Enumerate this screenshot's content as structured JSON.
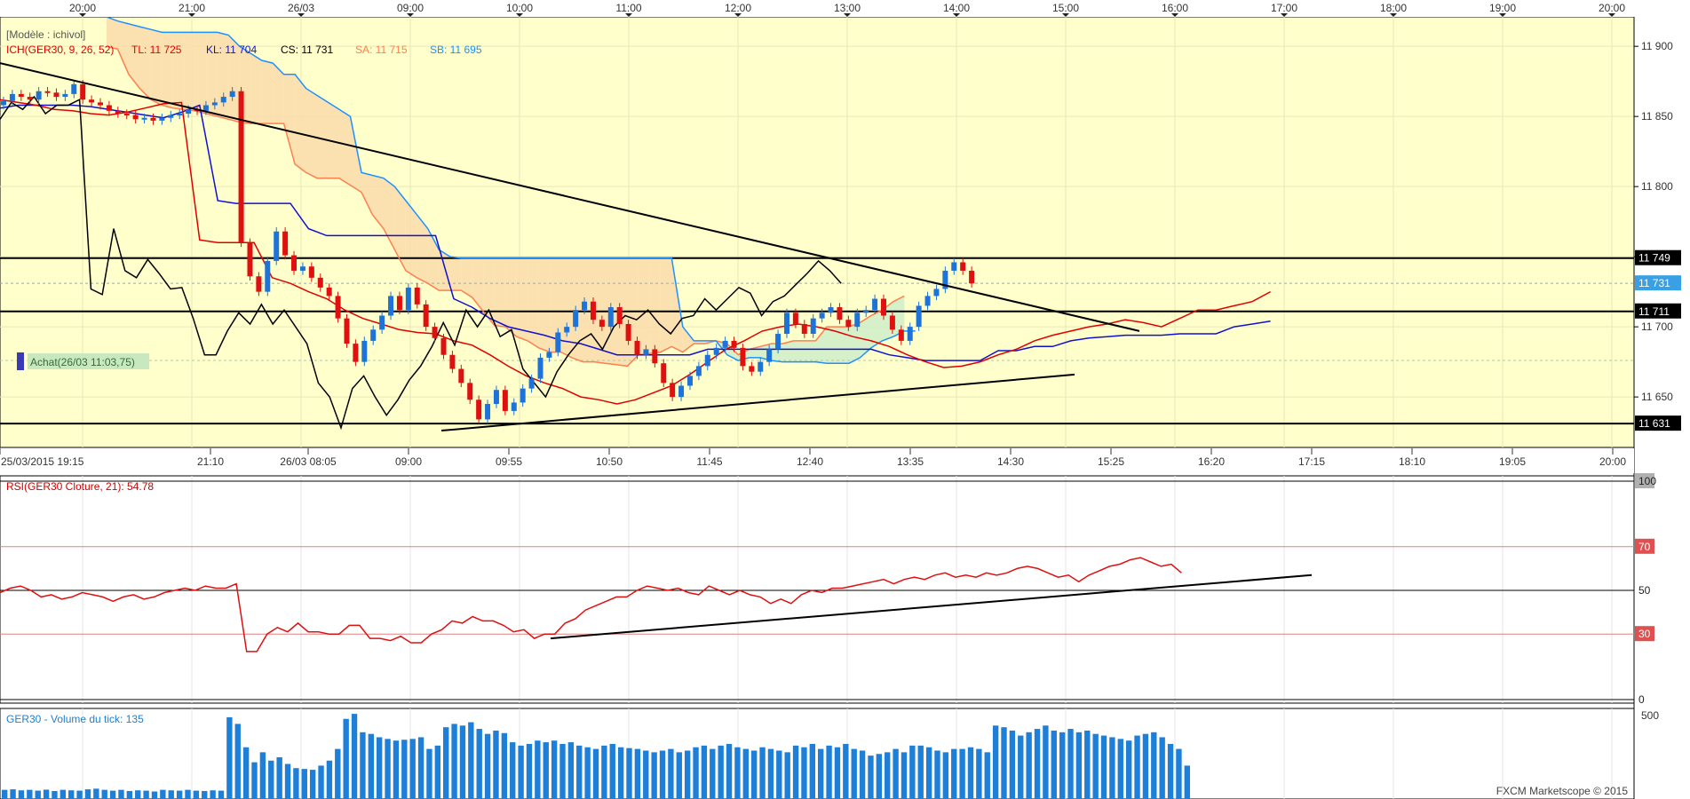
{
  "chart_data": [
    {
      "type": "candlestick",
      "title": "[Modèle : ichivol]",
      "ichimoku_label": "ICH(GER30, 9, 26, 52)",
      "legend": [
        {
          "label": "TL: 11 725",
          "color": "#e00000"
        },
        {
          "label": "KL: 11 704",
          "color": "#1010d0"
        },
        {
          "label": "CS: 11 731",
          "color": "#000000"
        },
        {
          "label": "SA: 11 715",
          "color": "#ff7f50"
        },
        {
          "label": "SB: 11 695",
          "color": "#1e90ff"
        }
      ],
      "top_axis_times": [
        "20:00",
        "21:00",
        "26/03",
        "09:00",
        "10:00",
        "11:00",
        "12:00",
        "13:00",
        "14:00",
        "15:00",
        "16:00",
        "17:00",
        "18:00",
        "19:00",
        "20:00"
      ],
      "bottom_axis_times": [
        "25/03/2015 19:15",
        "21:10",
        "26/03 08:05",
        "09:00",
        "09:55",
        "10:50",
        "11:45",
        "12:40",
        "13:35",
        "14:30",
        "15:25",
        "16:20",
        "17:15",
        "18:10",
        "19:05",
        "20:00"
      ],
      "y_ticks": [
        "11 900",
        "11 850",
        "11 800",
        "11 750",
        "11 700",
        "11 650"
      ],
      "ylim": [
        11614,
        11921
      ],
      "price_tags": [
        {
          "value": 11749,
          "label": "11 749",
          "style": "black"
        },
        {
          "value": 11731,
          "label": "11 731",
          "style": "blue"
        },
        {
          "value": 11711,
          "label": "11 711",
          "style": "black"
        },
        {
          "value": 11631,
          "label": "11 631",
          "style": "black"
        }
      ],
      "horizontal_levels": [
        11749,
        11711,
        11631
      ],
      "annotation": "Achat(26/03 11:03,75)",
      "annotation_value": 11676,
      "candles_close": [
        11861,
        11866,
        11864,
        11862,
        11868,
        11867,
        11864,
        11866,
        11873,
        11862,
        11860,
        11858,
        11854,
        11852,
        11851,
        11848,
        11849,
        11847,
        11849,
        11851,
        11852,
        11855,
        11854,
        11858,
        11860,
        11864,
        11868,
        11760,
        11736,
        11725,
        11747,
        11768,
        11751,
        11740,
        11743,
        11735,
        11728,
        11722,
        11706,
        11688,
        11675,
        11690,
        11698,
        11708,
        11722,
        11712,
        11728,
        11716,
        11700,
        11692,
        11680,
        11670,
        11660,
        11648,
        11634,
        11645,
        11655,
        11640,
        11646,
        11656,
        11663,
        11678,
        11682,
        11696,
        11700,
        11712,
        11718,
        11705,
        11700,
        11714,
        11702,
        11690,
        11680,
        11684,
        11674,
        11660,
        11650,
        11658,
        11665,
        11672,
        11680,
        11685,
        11690,
        11685,
        11672,
        11668,
        11675,
        11684,
        11695,
        11710,
        11702,
        11695,
        11706,
        11710,
        11714,
        11705,
        11700,
        11710,
        11712,
        11720,
        11708,
        11698,
        11690,
        11700,
        11715,
        11722,
        11727,
        11740,
        11746,
        11740,
        11731
      ],
      "chikou_span": [
        11848,
        11860,
        11855,
        11864,
        11852,
        11858,
        11858,
        11862,
        11727,
        11723,
        11770,
        11740,
        11735,
        11748,
        11738,
        11727,
        11728,
        11706,
        11680,
        11680,
        11697,
        11710,
        11702,
        11716,
        11702,
        11712,
        11700,
        11688,
        11660,
        11650,
        11628,
        11656,
        11665,
        11650,
        11637,
        11648,
        11662,
        11672,
        11686,
        11703,
        11687,
        11712,
        11700,
        11712,
        11693,
        11698,
        11670,
        11660,
        11650,
        11668,
        11680,
        11690,
        11695,
        11684,
        11700,
        11708,
        11705,
        11712,
        11702,
        11695,
        11706,
        11708,
        11720,
        11712,
        11720,
        11728,
        11724,
        11708,
        11718,
        11722,
        11730,
        11738,
        11747,
        11740,
        11731
      ],
      "tenkan_sen": [
        11862,
        11860,
        11858,
        11855,
        11854,
        11852,
        11851,
        11853,
        11856,
        11859,
        11860,
        11762,
        11760,
        11760,
        11760,
        11735,
        11731,
        11725,
        11720,
        11712,
        11706,
        11702,
        11698,
        11696,
        11695,
        11690,
        11687,
        11680,
        11672,
        11665,
        11660,
        11656,
        11650,
        11648,
        11645,
        11648,
        11653,
        11658,
        11666,
        11675,
        11684,
        11690,
        11697,
        11700,
        11702,
        11700,
        11697,
        11693,
        11690,
        11686,
        11680,
        11675,
        11671,
        11672,
        11675,
        11680,
        11684,
        11690,
        11694,
        11697,
        11700,
        11702,
        11705,
        11703,
        11700,
        11706,
        11712,
        11712,
        11715,
        11718,
        11725
      ],
      "kijun_sen": [
        11856,
        11858,
        11858,
        11858,
        11858,
        11857,
        11855,
        11853,
        11851,
        11849,
        11853,
        11858,
        11790,
        11788,
        11788,
        11788,
        11788,
        11770,
        11765,
        11765,
        11765,
        11765,
        11765,
        11765,
        11765,
        11720,
        11714,
        11706,
        11700,
        11697,
        11694,
        11690,
        11688,
        11684,
        11680,
        11680,
        11680,
        11680,
        11680,
        11684,
        11684,
        11684,
        11684,
        11684,
        11684,
        11684,
        11684,
        11684,
        11684,
        11680,
        11678,
        11676,
        11676,
        11676,
        11676,
        11683,
        11683,
        11686,
        11686,
        11690,
        11692,
        11693,
        11694,
        11694,
        11694,
        11695,
        11695,
        11695,
        11700,
        11702,
        11704
      ],
      "senkou_a": [
        11900,
        11898,
        11880,
        11870,
        11862,
        11858,
        11856,
        11855,
        11854,
        11852,
        11850,
        11848,
        11846,
        11845,
        11845,
        11845,
        11845,
        11816,
        11810,
        11806,
        11806,
        11806,
        11801,
        11796,
        11780,
        11770,
        11755,
        11740,
        11735,
        11731,
        11726,
        11726,
        11726,
        11721,
        11711,
        11701,
        11700,
        11693,
        11690,
        11685,
        11682,
        11682,
        11678,
        11675,
        11675,
        11674,
        11673,
        11672,
        11680,
        11681,
        11682,
        11686,
        11682,
        11688,
        11688,
        11690,
        11688,
        11680,
        11684,
        11686,
        11688,
        11688,
        11690,
        11690,
        11690,
        11700,
        11700,
        11700,
        11703,
        11708,
        11712,
        11718,
        11722
      ],
      "senkou_b": [
        11921,
        11918,
        11916,
        11914,
        11912,
        11910,
        11910,
        11910,
        11910,
        11910,
        11910,
        11908,
        11900,
        11895,
        11890,
        11888,
        11880,
        11880,
        11870,
        11865,
        11860,
        11855,
        11850,
        11810,
        11808,
        11806,
        11800,
        11790,
        11780,
        11770,
        11755,
        11750,
        11749,
        11749,
        11749,
        11749,
        11749,
        11749,
        11749,
        11749,
        11749,
        11749,
        11749,
        11749,
        11749,
        11749,
        11749,
        11749,
        11749,
        11749,
        11749,
        11749,
        11700,
        11690,
        11690,
        11690,
        11680,
        11676,
        11678,
        11678,
        11676,
        11675,
        11675,
        11675,
        11675,
        11674,
        11674,
        11674,
        11678,
        11685,
        11690,
        11693,
        11697,
        11697
      ],
      "trendlines": [
        {
          "from": [
            0,
            11888
          ],
          "to": [
            1283,
            11697
          ]
        },
        {
          "from": [
            497,
            11626
          ],
          "to": [
            1210,
            11666
          ]
        }
      ]
    },
    {
      "type": "line",
      "title": "RSI(GER30 Cloture, 21): 54.78",
      "ylim": [
        0,
        100
      ],
      "y_ticks": [
        0,
        30,
        50,
        70,
        100
      ],
      "levels": [
        30,
        50,
        70
      ],
      "values": [
        49,
        51,
        52,
        50,
        47,
        48,
        46,
        47,
        49,
        48,
        47,
        45,
        47,
        48,
        46,
        47,
        49,
        50,
        51,
        50,
        52,
        51,
        51,
        53,
        22,
        22,
        30,
        33,
        31,
        35,
        31,
        31,
        30,
        30,
        34,
        34,
        28,
        28,
        27,
        29,
        26,
        26,
        30,
        32,
        36,
        35,
        38,
        36,
        36,
        34,
        31,
        32,
        28,
        30,
        30,
        35,
        37,
        41,
        43,
        45,
        47,
        47,
        50,
        52,
        51,
        50,
        51,
        49,
        48,
        52,
        50,
        48,
        50,
        48,
        47,
        44,
        46,
        44,
        48,
        50,
        49,
        51,
        51,
        52,
        53,
        54,
        55,
        53,
        55,
        56,
        55,
        57,
        58,
        56,
        57,
        56,
        58,
        57,
        58,
        60,
        61,
        60,
        58,
        56,
        57,
        54,
        57,
        59,
        61,
        62,
        64,
        65,
        63,
        61,
        62,
        58
      ],
      "trendline": {
        "from": [
          0,
          28
        ],
        "to": [
          1,
          57
        ]
      }
    },
    {
      "type": "bar",
      "title": "GER30 - Volume du tick: 135",
      "ylim": [
        0,
        500
      ],
      "y_ticks": [
        500
      ],
      "values": [
        55,
        58,
        52,
        55,
        50,
        56,
        48,
        55,
        52,
        50,
        58,
        62,
        55,
        50,
        55,
        48,
        52,
        50,
        45,
        55,
        52,
        50,
        55,
        50,
        48,
        52,
        50,
        490,
        450,
        310,
        220,
        280,
        230,
        250,
        210,
        185,
        180,
        175,
        200,
        230,
        300,
        480,
        510,
        400,
        390,
        370,
        360,
        350,
        355,
        360,
        370,
        300,
        320,
        430,
        450,
        440,
        460,
        420,
        390,
        410,
        395,
        340,
        320,
        330,
        350,
        340,
        350,
        330,
        340,
        320,
        310,
        300,
        320,
        330,
        310,
        305,
        300,
        290,
        280,
        290,
        300,
        280,
        290,
        310,
        320,
        300,
        320,
        330,
        310,
        300,
        290,
        310,
        300,
        290,
        280,
        320,
        310,
        330,
        300,
        320,
        310,
        330,
        300,
        290,
        260,
        270,
        280,
        300,
        280,
        320,
        320,
        310,
        290,
        280,
        300,
        300,
        310,
        300,
        280,
        440,
        430,
        410,
        380,
        400,
        420,
        440,
        410,
        400,
        420,
        400,
        410,
        390,
        380,
        370,
        360,
        350,
        380,
        390,
        400,
        370,
        330,
        300,
        200
      ]
    }
  ],
  "footer": {
    "copyright": "FXCM Marketscope © 2015"
  }
}
